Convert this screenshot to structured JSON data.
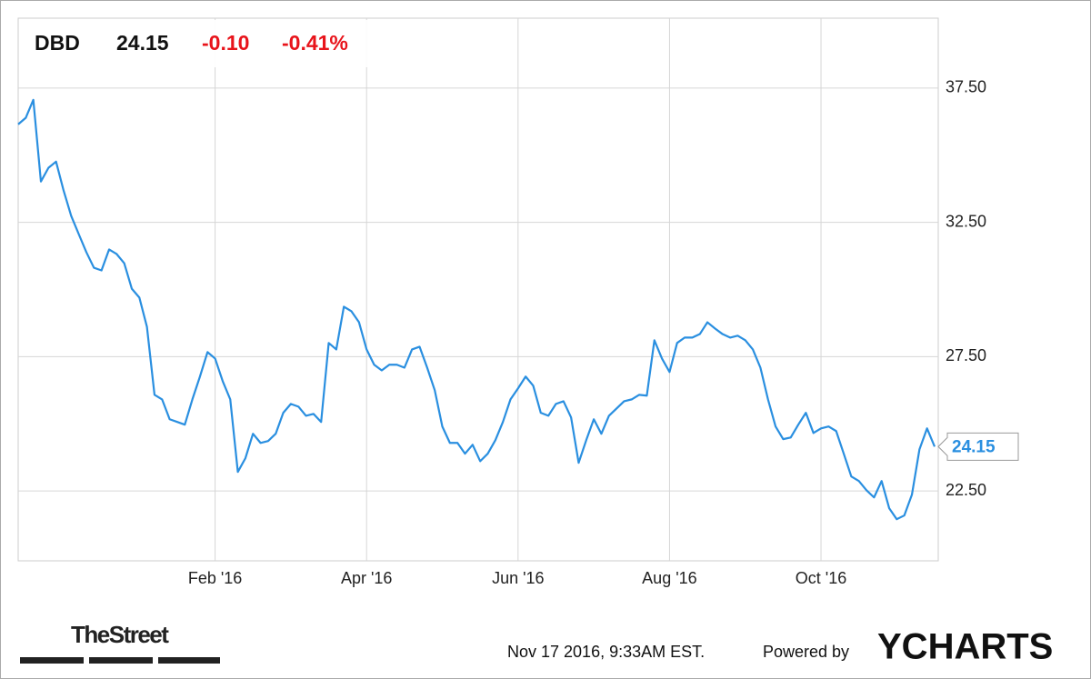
{
  "chart_data": {
    "type": "line",
    "ticker": "DBD",
    "price": "24.15",
    "change": "-0.10",
    "change_pct": "-0.41%",
    "categories": [
      null,
      null,
      null,
      null,
      null,
      null,
      null,
      null,
      null,
      null,
      null,
      null,
      null,
      null,
      null,
      null,
      null,
      null,
      null,
      null,
      null,
      null,
      null,
      null,
      null,
      null,
      "Feb '16",
      null,
      null,
      null,
      null,
      null,
      null,
      null,
      null,
      null,
      null,
      null,
      null,
      null,
      null,
      null,
      null,
      null,
      null,
      null,
      "Apr '16",
      null,
      null,
      null,
      null,
      null,
      null,
      null,
      null,
      null,
      null,
      null,
      null,
      null,
      null,
      null,
      null,
      null,
      null,
      null,
      "Jun '16",
      null,
      null,
      null,
      null,
      null,
      null,
      null,
      null,
      null,
      null,
      null,
      null,
      null,
      null,
      null,
      null,
      null,
      null,
      null,
      "Aug '16",
      null,
      null,
      null,
      null,
      null,
      null,
      null,
      null,
      null,
      null,
      null,
      null,
      null,
      null,
      null,
      null,
      null,
      null,
      null,
      "Oct '16",
      null,
      null,
      null,
      null,
      null,
      null,
      null,
      null,
      null,
      null,
      null,
      null,
      null,
      null,
      null
    ],
    "series": [
      {
        "name": "DBD",
        "color": "#2a8fe0",
        "values": [
          36.15,
          36.39,
          37.06,
          34.02,
          34.53,
          34.76,
          33.68,
          32.74,
          32.06,
          31.39,
          30.81,
          30.71,
          31.49,
          31.32,
          30.98,
          30.03,
          29.7,
          28.61,
          26.08,
          25.91,
          25.17,
          25.07,
          24.97,
          25.91,
          26.76,
          27.67,
          27.43,
          26.59,
          25.91,
          23.21,
          23.72,
          24.63,
          24.29,
          24.36,
          24.63,
          25.41,
          25.74,
          25.64,
          25.3,
          25.37,
          25.07,
          28.01,
          27.77,
          29.36,
          29.19,
          28.78,
          27.77,
          27.2,
          26.99,
          27.2,
          27.2,
          27.09,
          27.77,
          27.87,
          27.09,
          26.25,
          24.9,
          24.29,
          24.29,
          23.89,
          24.22,
          23.61,
          23.89,
          24.39,
          25.07,
          25.91,
          26.32,
          26.76,
          26.42,
          25.41,
          25.3,
          25.74,
          25.84,
          25.24,
          23.55,
          24.39,
          25.17,
          24.63,
          25.3,
          25.57,
          25.84,
          25.91,
          26.08,
          26.05,
          28.11,
          27.43,
          26.93,
          28.01,
          28.21,
          28.21,
          28.34,
          28.78,
          28.55,
          28.34,
          28.21,
          28.28,
          28.11,
          27.77,
          27.09,
          25.91,
          24.9,
          24.43,
          24.49,
          24.97,
          25.41,
          24.66,
          24.83,
          24.9,
          24.73,
          23.89,
          23.04,
          22.87,
          22.53,
          22.26,
          22.87,
          21.86,
          21.45,
          21.59,
          22.36,
          24.05,
          24.83,
          24.15
        ]
      }
    ],
    "ylim": [
      19.9,
      40.1
    ],
    "yticks": [
      {
        "value": 22.5,
        "label": "22.50"
      },
      {
        "value": 27.5,
        "label": "27.50"
      },
      {
        "value": 32.5,
        "label": "32.50"
      },
      {
        "value": 37.5,
        "label": "37.50"
      }
    ],
    "grid": true
  },
  "footer": {
    "brand": "TheStreet",
    "timestamp": "Nov 17 2016, 9:33AM EST.",
    "powered_by": "Powered by",
    "provider": "YCHARTS"
  }
}
